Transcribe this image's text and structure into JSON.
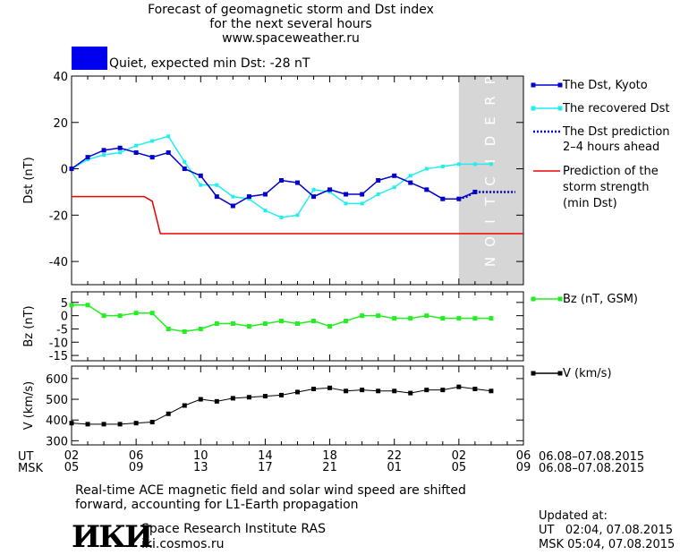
{
  "header": {
    "title_line1": "Forecast of geomagnetic storm and Dst index",
    "title_line2": "for the next several hours",
    "title_line3": "www.spaceweather.ru",
    "status_label": "Quiet, expected min Dst: -28 nT",
    "status_color": "#0000ee"
  },
  "colors": {
    "dst_kyoto": "#0000cc",
    "dst_recovered": "#22eeee",
    "dst_prediction": "#0000cc",
    "storm_strength": "#ee0000",
    "bz": "#22ee22",
    "v": "#000000",
    "prediction_band": "#d6d6d6"
  },
  "prediction_band_text": "PREDICTION",
  "chart_data": [
    {
      "type": "line",
      "panel": "dst",
      "ylabel": "Dst (nT)",
      "ylim": [
        -50,
        40
      ],
      "yticks": [
        -40,
        -20,
        0,
        20,
        40
      ],
      "x_range_hours": [
        0,
        28
      ],
      "prediction_band_hours": [
        24,
        28
      ],
      "series": [
        {
          "name": "The Dst, Kyoto",
          "x": [
            0,
            1,
            2,
            3,
            4,
            5,
            6,
            7,
            8,
            9,
            10,
            11,
            12,
            13,
            14,
            15,
            16,
            17,
            18,
            19,
            20,
            21,
            22,
            23,
            24,
            25
          ],
          "values": [
            0,
            5,
            8,
            9,
            7,
            5,
            7,
            0,
            -3,
            -12,
            -16,
            -12,
            -11,
            -5,
            -6,
            -12,
            -9,
            -11,
            -11,
            -5,
            -3,
            -6,
            -9,
            -13,
            -13,
            -10
          ]
        },
        {
          "name": "The recovered Dst",
          "x": [
            0,
            1,
            2,
            3,
            4,
            5,
            6,
            7,
            8,
            9,
            10,
            11,
            12,
            13,
            14,
            15,
            16,
            17,
            18,
            19,
            20,
            21,
            22,
            23,
            24,
            25,
            26
          ],
          "values": [
            0,
            4,
            6,
            7,
            10,
            12,
            14,
            3,
            -7,
            -7,
            -12,
            -13,
            -18,
            -21,
            -20,
            -9,
            -10,
            -15,
            -15,
            -11,
            -8,
            -3,
            0,
            1,
            2,
            2,
            2
          ]
        },
        {
          "name": "The Dst prediction 2-4 hours ahead",
          "x": [
            24,
            24.5,
            25,
            25.5,
            26,
            26.5,
            27,
            27.5
          ],
          "values": [
            -13,
            -12,
            -10,
            -10,
            -10,
            -10,
            -10,
            -10
          ]
        },
        {
          "name": "Prediction of the storm strength (min Dst)",
          "x": [
            0,
            4,
            4.5,
            5,
            5.5,
            28
          ],
          "values": [
            -12,
            -12,
            -12,
            -14,
            -28,
            -28
          ]
        }
      ],
      "legend": [
        "The Dst, Kyoto",
        "The recovered Dst",
        "The Dst prediction 2–4 hours ahead",
        "Prediction of the storm strength (min Dst)"
      ],
      "legend_lines": [
        "The Dst, Kyoto",
        "The recovered Dst",
        "The Dst prediction",
        "2–4 hours ahead",
        "Prediction of the",
        "storm strength",
        "(min Dst)"
      ]
    },
    {
      "type": "line",
      "panel": "bz",
      "ylabel": "Bz (nT)",
      "ylim": [
        -17,
        9
      ],
      "yticks": [
        5,
        0,
        -5,
        -10,
        -15
      ],
      "series": [
        {
          "name": "Bz (nT, GSM)",
          "x": [
            0,
            1,
            2,
            3,
            4,
            5,
            6,
            7,
            8,
            9,
            10,
            11,
            12,
            13,
            14,
            15,
            16,
            17,
            18,
            19,
            20,
            21,
            22,
            23,
            24,
            25,
            26
          ],
          "values": [
            4,
            4,
            0,
            0,
            1,
            1,
            -5,
            -6,
            -5,
            -3,
            -3,
            -4,
            -3,
            -2,
            -3,
            -2,
            -4,
            -2,
            0,
            0,
            -1,
            -1,
            0,
            -1,
            -1,
            -1,
            -1
          ]
        }
      ],
      "legend": [
        "Bz (nT, GSM)"
      ]
    },
    {
      "type": "line",
      "panel": "v",
      "ylabel": "V (km/s)",
      "ylim": [
        280,
        660
      ],
      "yticks": [
        300,
        400,
        500,
        600
      ],
      "series": [
        {
          "name": "V (km/s)",
          "x": [
            0,
            1,
            2,
            3,
            4,
            5,
            6,
            7,
            8,
            9,
            10,
            11,
            12,
            13,
            14,
            15,
            16,
            17,
            18,
            19,
            20,
            21,
            22,
            23,
            24,
            25,
            26
          ],
          "values": [
            385,
            380,
            380,
            380,
            385,
            390,
            430,
            470,
            500,
            490,
            505,
            510,
            515,
            520,
            535,
            550,
            555,
            540,
            545,
            540,
            540,
            530,
            545,
            545,
            560,
            550,
            540
          ]
        }
      ],
      "legend": [
        "V (km/s)"
      ]
    }
  ],
  "time_axis": {
    "ut_label": "UT",
    "msk_label": "MSK",
    "ut_ticks": [
      "02",
      "06",
      "10",
      "14",
      "18",
      "22",
      "02",
      "06"
    ],
    "msk_ticks": [
      "05",
      "09",
      "13",
      "17",
      "21",
      "01",
      "05",
      "09"
    ],
    "ut_range": "06.08–07.08.2015",
    "msk_range": "06.08–07.08.2015"
  },
  "footer": {
    "note_line1": "Real-time ACE magnetic field and solar wind speed are shifted",
    "note_line2": "forward, accounting for L1-Earth propagation",
    "logo_text": "ИКИ",
    "institute": "Space Research Institute RAS",
    "institute_url": "iki.cosmos.ru",
    "updated_label": "Updated at:",
    "updated_ut": "UT   02:04, 07.08.2015",
    "updated_msk": "MSK 05:04, 07.08.2015"
  }
}
